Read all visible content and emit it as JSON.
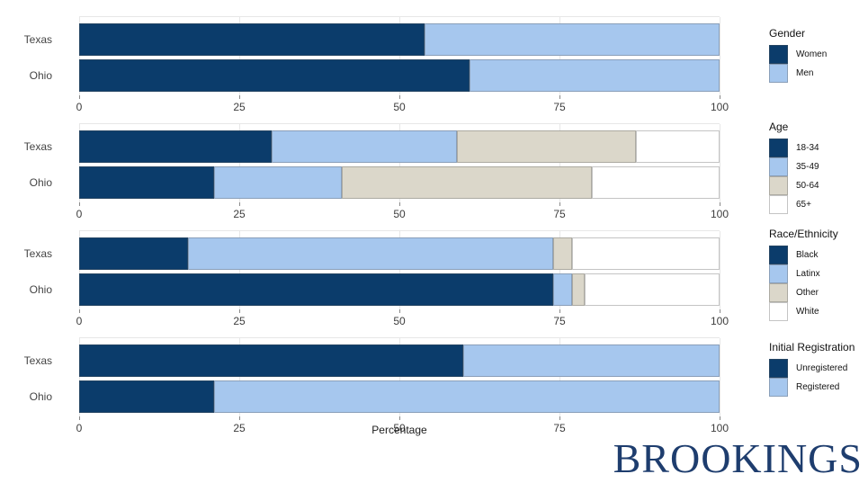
{
  "chart_data": [
    {
      "id": "gender",
      "type": "bar",
      "stacked": true,
      "orientation": "horizontal",
      "legend_title": "Gender",
      "legend_position": "right",
      "categories": [
        "Texas",
        "Ohio"
      ],
      "ticks": [
        0,
        25,
        50,
        75,
        100
      ],
      "xlim": [
        0,
        100
      ],
      "grid": true,
      "series": [
        {
          "name": "Women",
          "color": "#0b3c6b",
          "values": [
            54,
            61
          ]
        },
        {
          "name": "Men",
          "color": "#a6c7ee",
          "values": [
            46,
            39
          ]
        }
      ]
    },
    {
      "id": "age",
      "type": "bar",
      "stacked": true,
      "orientation": "horizontal",
      "legend_title": "Age",
      "legend_position": "right",
      "categories": [
        "Texas",
        "Ohio"
      ],
      "ticks": [
        0,
        25,
        50,
        75,
        100
      ],
      "xlim": [
        0,
        100
      ],
      "grid": true,
      "series": [
        {
          "name": "18-34",
          "color": "#0b3c6b",
          "values": [
            30,
            21
          ]
        },
        {
          "name": "35-49",
          "color": "#a6c7ee",
          "values": [
            29,
            20
          ]
        },
        {
          "name": "50-64",
          "color": "#dbd7ca",
          "values": [
            28,
            39
          ]
        },
        {
          "name": "65+",
          "color": "#ffffff",
          "values": [
            13,
            20
          ]
        }
      ]
    },
    {
      "id": "race-ethnicity",
      "type": "bar",
      "stacked": true,
      "orientation": "horizontal",
      "legend_title": "Race/Ethnicity",
      "legend_position": "right",
      "categories": [
        "Texas",
        "Ohio"
      ],
      "ticks": [
        0,
        25,
        50,
        75,
        100
      ],
      "xlim": [
        0,
        100
      ],
      "grid": true,
      "series": [
        {
          "name": "Black",
          "color": "#0b3c6b",
          "values": [
            17,
            74
          ]
        },
        {
          "name": "Latinx",
          "color": "#a6c7ee",
          "values": [
            57,
            3
          ]
        },
        {
          "name": "Other",
          "color": "#dbd7ca",
          "values": [
            3,
            2
          ]
        },
        {
          "name": "White",
          "color": "#ffffff",
          "values": [
            23,
            21
          ]
        }
      ]
    },
    {
      "id": "initial-registration",
      "type": "bar",
      "stacked": true,
      "orientation": "horizontal",
      "legend_title": "Initial Registration",
      "legend_position": "right",
      "categories": [
        "Texas",
        "Ohio"
      ],
      "ticks": [
        0,
        25,
        50,
        75,
        100
      ],
      "xlim": [
        0,
        100
      ],
      "grid": true,
      "xlabel": "Percentage",
      "series": [
        {
          "name": "Unregistered",
          "color": "#0b3c6b",
          "values": [
            60,
            21
          ]
        },
        {
          "name": "Registered",
          "color": "#a6c7ee",
          "values": [
            40,
            79
          ]
        }
      ]
    }
  ],
  "branding": {
    "logo_text": "BROOKINGS",
    "logo_color": "#1e3d6e"
  },
  "palette": {
    "dark_navy": "#0b3c6b",
    "light_blue": "#a6c7ee",
    "beige": "#dbd7ca",
    "white": "#ffffff",
    "gridline": "#e7e7e7"
  }
}
